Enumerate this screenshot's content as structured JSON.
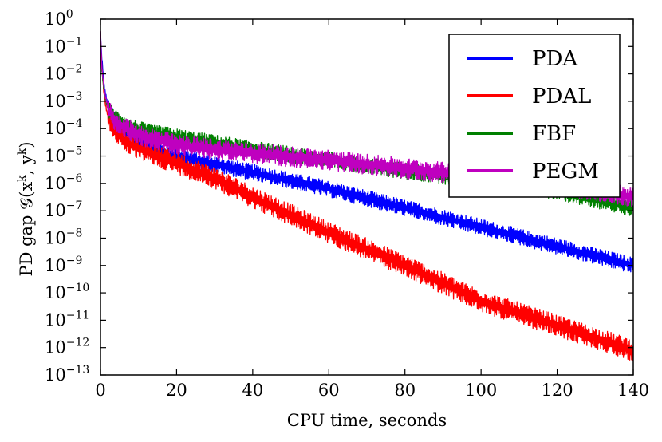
{
  "chart_data": {
    "type": "line",
    "title": "",
    "xlabel": "CPU time,  seconds",
    "ylabel": "PD gap 𝒢(x",
    "ylabel_sup1": "k",
    "ylabel_mid": ", y",
    "ylabel_sup2": "k",
    "ylabel_end": ")",
    "xlim": [
      0,
      140
    ],
    "ylim_log10": [
      -13,
      0
    ],
    "yscale": "log",
    "grid": false,
    "legend_position": "top-right",
    "x_ticks": [
      {
        "value": 0,
        "label": "0"
      },
      {
        "value": 20,
        "label": "20"
      },
      {
        "value": 40,
        "label": "40"
      },
      {
        "value": 60,
        "label": "60"
      },
      {
        "value": 80,
        "label": "80"
      },
      {
        "value": 100,
        "label": "100"
      },
      {
        "value": 120,
        "label": "120"
      },
      {
        "value": 140,
        "label": "140"
      }
    ],
    "y_ticks": [
      {
        "exp": 0,
        "base": "10",
        "sup": "0"
      },
      {
        "exp": -1,
        "base": "10",
        "sup": "−1"
      },
      {
        "exp": -2,
        "base": "10",
        "sup": "−2"
      },
      {
        "exp": -3,
        "base": "10",
        "sup": "−3"
      },
      {
        "exp": -4,
        "base": "10",
        "sup": "−4"
      },
      {
        "exp": -5,
        "base": "10",
        "sup": "−5"
      },
      {
        "exp": -6,
        "base": "10",
        "sup": "−6"
      },
      {
        "exp": -7,
        "base": "10",
        "sup": "−7"
      },
      {
        "exp": -8,
        "base": "10",
        "sup": "−8"
      },
      {
        "exp": -9,
        "base": "10",
        "sup": "−9"
      },
      {
        "exp": -10,
        "base": "10",
        "sup": "−10"
      },
      {
        "exp": -11,
        "base": "10",
        "sup": "−11"
      },
      {
        "exp": -12,
        "base": "10",
        "sup": "−12"
      },
      {
        "exp": -13,
        "base": "10",
        "sup": "−13"
      }
    ],
    "series": [
      {
        "name": "PDA",
        "color": "#0000ff",
        "band_log10": 0.6,
        "points": [
          [
            0.0,
            -0.5
          ],
          [
            0.3,
            -1.3
          ],
          [
            1,
            -2.5
          ],
          [
            2,
            -3.2
          ],
          [
            4,
            -3.8
          ],
          [
            8,
            -4.3
          ],
          [
            15,
            -4.8
          ],
          [
            20,
            -5.0
          ],
          [
            30,
            -5.3
          ],
          [
            40,
            -5.6
          ],
          [
            60,
            -6.2
          ],
          [
            80,
            -6.9
          ],
          [
            100,
            -7.6
          ],
          [
            120,
            -8.3
          ],
          [
            140,
            -9.0
          ]
        ]
      },
      {
        "name": "PDAL",
        "color": "#ff0000",
        "band_log10": 0.8,
        "points": [
          [
            0.0,
            -0.5
          ],
          [
            0.3,
            -1.6
          ],
          [
            1,
            -2.9
          ],
          [
            2,
            -3.6
          ],
          [
            4,
            -4.1
          ],
          [
            8,
            -4.6
          ],
          [
            15,
            -5.0
          ],
          [
            20,
            -5.25
          ],
          [
            30,
            -5.8
          ],
          [
            40,
            -6.5
          ],
          [
            60,
            -7.8
          ],
          [
            80,
            -9.0
          ],
          [
            100,
            -10.3
          ],
          [
            120,
            -11.2
          ],
          [
            140,
            -12.1
          ]
        ]
      },
      {
        "name": "FBF",
        "color": "#008000",
        "band_log10": 0.6,
        "points": [
          [
            0.0,
            -0.5
          ],
          [
            0.3,
            -1.8
          ],
          [
            1,
            -2.7
          ],
          [
            2,
            -3.3
          ],
          [
            4,
            -3.6
          ],
          [
            8,
            -3.95
          ],
          [
            12,
            -4.1
          ],
          [
            20,
            -4.3
          ],
          [
            40,
            -4.75
          ],
          [
            60,
            -5.15
          ],
          [
            80,
            -5.55
          ],
          [
            100,
            -5.9
          ],
          [
            120,
            -6.3
          ],
          [
            140,
            -6.9
          ]
        ]
      },
      {
        "name": "PEGM",
        "color": "#bf00bf",
        "band_log10": 0.75,
        "points": [
          [
            0.0,
            -0.5
          ],
          [
            0.3,
            -1.7
          ],
          [
            1,
            -2.6
          ],
          [
            2,
            -3.3
          ],
          [
            4,
            -3.75
          ],
          [
            8,
            -4.1
          ],
          [
            12,
            -4.3
          ],
          [
            20,
            -4.6
          ],
          [
            40,
            -4.9
          ],
          [
            60,
            -5.15
          ],
          [
            80,
            -5.45
          ],
          [
            100,
            -5.75
          ],
          [
            120,
            -6.05
          ],
          [
            140,
            -6.5
          ]
        ]
      }
    ]
  }
}
